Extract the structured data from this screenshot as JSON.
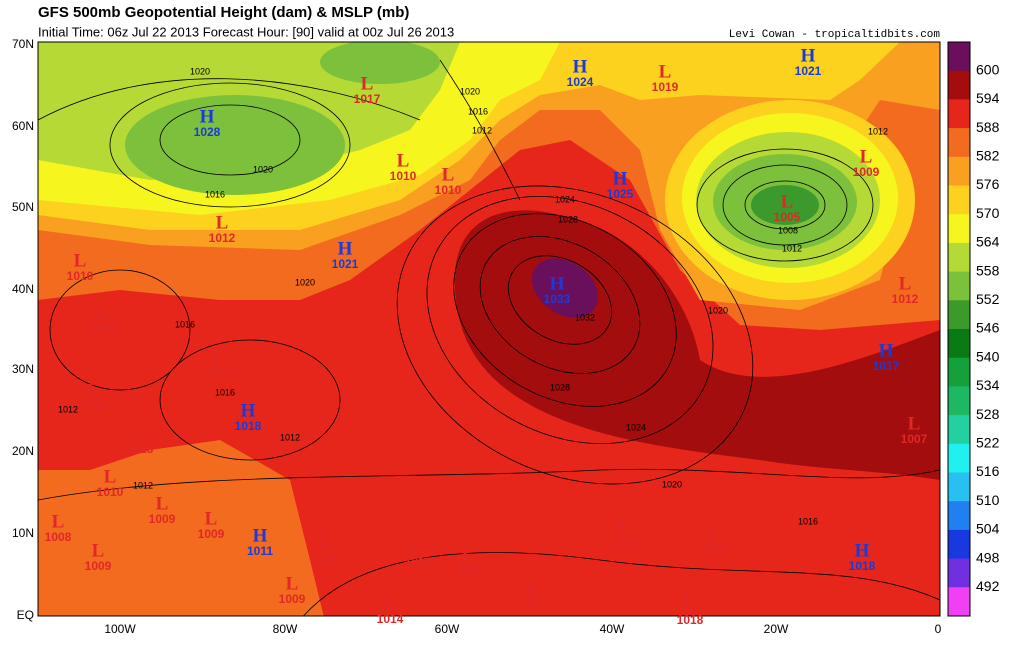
{
  "header": {
    "title": "GFS 500mb Geopotential Height (dam) & MSLP (mb)",
    "subtitle": "Initial Time: 06z Jul 22 2013 Forecast Hour: [90] valid at 00z Jul 26 2013",
    "credit": "Levi Cowan - tropicaltidbits.com"
  },
  "latitude_labels": [
    "70N",
    "60N",
    "50N",
    "40N",
    "30N",
    "20N",
    "10N",
    "EQ"
  ],
  "longitude_labels": [
    "100W",
    "80W",
    "60W",
    "40W",
    "20W",
    "0"
  ],
  "colorbar": {
    "levels": [
      600,
      594,
      588,
      582,
      576,
      570,
      564,
      558,
      552,
      546,
      540,
      534,
      528,
      522,
      516,
      510,
      504,
      498,
      492
    ],
    "colors": [
      "#6a0f5c",
      "#a30d0d",
      "#e6261a",
      "#f26b1e",
      "#f9a020",
      "#fcd21e",
      "#f7f51e",
      "#b5d935",
      "#7cc03c",
      "#3c9a2c",
      "#0a7a14",
      "#14a03a",
      "#1cb862",
      "#22d0a0",
      "#20f0f0",
      "#28c0f0",
      "#2080f0",
      "#1838e0",
      "#7030e0",
      "#f040f4"
    ]
  },
  "pressure_centers": [
    {
      "label": "L",
      "value": 1017
    },
    {
      "label": "H",
      "value": 1024
    },
    {
      "label": "L",
      "value": 1019
    },
    {
      "label": "H",
      "value": 1021
    },
    {
      "label": "H",
      "value": 1028
    },
    {
      "label": "L",
      "value": 1010
    },
    {
      "label": "L",
      "value": 1010
    },
    {
      "label": "H",
      "value": 1025
    },
    {
      "label": "L",
      "value": 1009
    },
    {
      "label": "L",
      "value": 1005
    },
    {
      "label": "L",
      "value": 1012
    },
    {
      "label": "H",
      "value": 1021
    },
    {
      "label": "L",
      "value": 1010
    },
    {
      "label": "H",
      "value": 1033
    },
    {
      "label": "L",
      "value": 1012
    },
    {
      "label": "L",
      "value": 1006
    },
    {
      "label": "H",
      "value": 1017
    },
    {
      "label": "L",
      "value": 1014
    },
    {
      "label": "L",
      "value": 1010
    },
    {
      "label": "H",
      "value": 1018
    },
    {
      "label": "L",
      "value": 1013
    },
    {
      "label": "L",
      "value": 1007
    },
    {
      "label": "L",
      "value": 1010
    },
    {
      "label": "L",
      "value": 1009
    },
    {
      "label": "L",
      "value": 1009
    },
    {
      "label": "L",
      "value": 1017
    },
    {
      "label": "L",
      "value": 1018
    },
    {
      "label": "L",
      "value": 1008
    },
    {
      "label": "H",
      "value": 1011
    },
    {
      "label": "L",
      "value": 1009
    },
    {
      "label": "L",
      "value": 1008
    },
    {
      "label": "L",
      "value": 1013
    },
    {
      "label": "L",
      "value": 1014
    },
    {
      "label": "H",
      "value": 1018
    },
    {
      "label": "L",
      "value": 1009
    },
    {
      "label": "L",
      "value": 1015
    },
    {
      "label": "L",
      "value": 1014
    },
    {
      "label": "L",
      "value": 1018
    }
  ],
  "isobar_labels": [
    1020,
    1020,
    1016,
    1020,
    1016,
    1012,
    1024,
    1028,
    1032,
    1028,
    1024,
    1020,
    1012,
    1008,
    1012,
    1020,
    1016,
    1016,
    1012,
    1012,
    1020,
    1016,
    1012
  ]
}
